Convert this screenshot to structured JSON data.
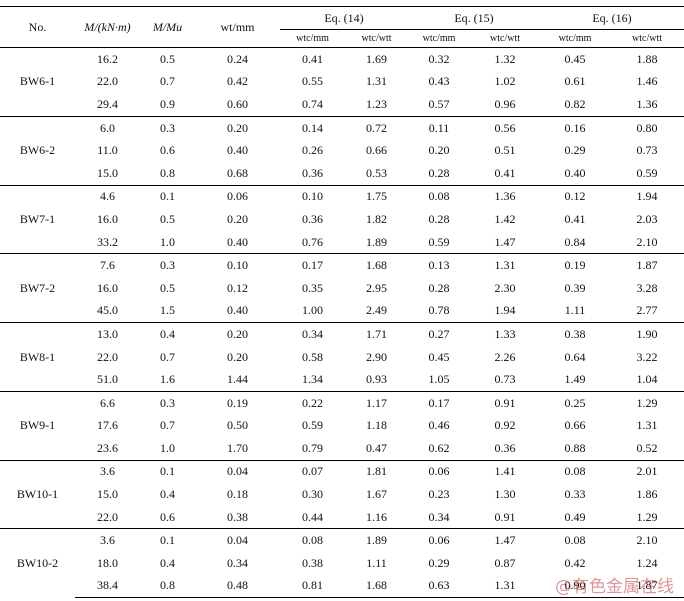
{
  "header": {
    "no": "No.",
    "moment": "M/(kN·m)",
    "ratio": "M/Mu",
    "wt": "wt/mm",
    "eqs": [
      {
        "title": "Eq. (14)",
        "cols": [
          "wtc/mm",
          "wtc/wtt"
        ]
      },
      {
        "title": "Eq. (15)",
        "cols": [
          "wtc/mm",
          "wtc/wtt"
        ]
      },
      {
        "title": "Eq. (16)",
        "cols": [
          "wtc/mm",
          "wtc/wtt"
        ]
      }
    ]
  },
  "groups": [
    {
      "name": "BW6-1",
      "rows": [
        [
          "16.2",
          "0.5",
          "0.24",
          "0.41",
          "1.69",
          "0.32",
          "1.32",
          "0.45",
          "1.88"
        ],
        [
          "22.0",
          "0.7",
          "0.42",
          "0.55",
          "1.31",
          "0.43",
          "1.02",
          "0.61",
          "1.46"
        ],
        [
          "29.4",
          "0.9",
          "0.60",
          "0.74",
          "1.23",
          "0.57",
          "0.96",
          "0.82",
          "1.36"
        ]
      ]
    },
    {
      "name": "BW6-2",
      "rows": [
        [
          "6.0",
          "0.3",
          "0.20",
          "0.14",
          "0.72",
          "0.11",
          "0.56",
          "0.16",
          "0.80"
        ],
        [
          "11.0",
          "0.6",
          "0.40",
          "0.26",
          "0.66",
          "0.20",
          "0.51",
          "0.29",
          "0.73"
        ],
        [
          "15.0",
          "0.8",
          "0.68",
          "0.36",
          "0.53",
          "0.28",
          "0.41",
          "0.40",
          "0.59"
        ]
      ]
    },
    {
      "name": "BW7-1",
      "rows": [
        [
          "4.6",
          "0.1",
          "0.06",
          "0.10",
          "1.75",
          "0.08",
          "1.36",
          "0.12",
          "1.94"
        ],
        [
          "16.0",
          "0.5",
          "0.20",
          "0.36",
          "1.82",
          "0.28",
          "1.42",
          "0.41",
          "2.03"
        ],
        [
          "33.2",
          "1.0",
          "0.40",
          "0.76",
          "1.89",
          "0.59",
          "1.47",
          "0.84",
          "2.10"
        ]
      ]
    },
    {
      "name": "BW7-2",
      "rows": [
        [
          "7.6",
          "0.3",
          "0.10",
          "0.17",
          "1.68",
          "0.13",
          "1.31",
          "0.19",
          "1.87"
        ],
        [
          "16.0",
          "0.5",
          "0.12",
          "0.35",
          "2.95",
          "0.28",
          "2.30",
          "0.39",
          "3.28"
        ],
        [
          "45.0",
          "1.5",
          "0.40",
          "1.00",
          "2.49",
          "0.78",
          "1.94",
          "1.11",
          "2.77"
        ]
      ]
    },
    {
      "name": "BW8-1",
      "rows": [
        [
          "13.0",
          "0.4",
          "0.20",
          "0.34",
          "1.71",
          "0.27",
          "1.33",
          "0.38",
          "1.90"
        ],
        [
          "22.0",
          "0.7",
          "0.20",
          "0.58",
          "2.90",
          "0.45",
          "2.26",
          "0.64",
          "3.22"
        ],
        [
          "51.0",
          "1.6",
          "1.44",
          "1.34",
          "0.93",
          "1.05",
          "0.73",
          "1.49",
          "1.04"
        ]
      ]
    },
    {
      "name": "BW9-1",
      "rows": [
        [
          "6.6",
          "0.3",
          "0.19",
          "0.22",
          "1.17",
          "0.17",
          "0.91",
          "0.25",
          "1.29"
        ],
        [
          "17.6",
          "0.7",
          "0.50",
          "0.59",
          "1.18",
          "0.46",
          "0.92",
          "0.66",
          "1.31"
        ],
        [
          "23.6",
          "1.0",
          "1.70",
          "0.79",
          "0.47",
          "0.62",
          "0.36",
          "0.88",
          "0.52"
        ]
      ]
    },
    {
      "name": "BW10-1",
      "rows": [
        [
          "3.6",
          "0.1",
          "0.04",
          "0.07",
          "1.81",
          "0.06",
          "1.41",
          "0.08",
          "2.01"
        ],
        [
          "15.0",
          "0.4",
          "0.18",
          "0.30",
          "1.67",
          "0.23",
          "1.30",
          "0.33",
          "1.86"
        ],
        [
          "22.0",
          "0.6",
          "0.38",
          "0.44",
          "1.16",
          "0.34",
          "0.91",
          "0.49",
          "1.29"
        ]
      ]
    },
    {
      "name": "BW10-2",
      "rows": [
        [
          "3.6",
          "0.1",
          "0.04",
          "0.08",
          "1.89",
          "0.06",
          "1.47",
          "0.08",
          "2.10"
        ],
        [
          "18.0",
          "0.4",
          "0.34",
          "0.38",
          "1.11",
          "0.29",
          "0.87",
          "0.42",
          "1.24"
        ],
        [
          "38.4",
          "0.8",
          "0.48",
          "0.81",
          "1.68",
          "0.63",
          "1.31",
          "0.90",
          "1.87"
        ]
      ]
    }
  ],
  "watermark": "@有色金属在线"
}
